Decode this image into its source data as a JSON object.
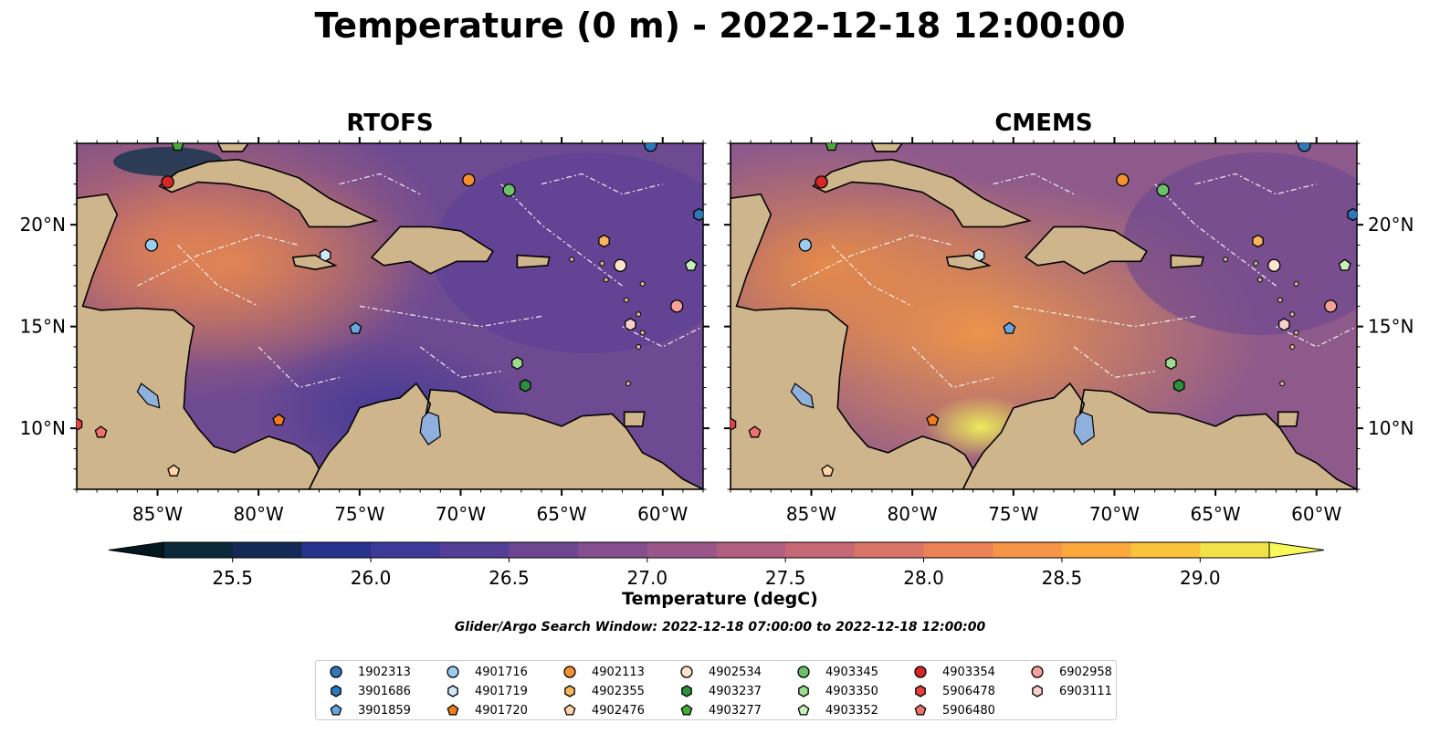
{
  "title": "Temperature (0 m) - 2022-12-18 12:00:00",
  "panels": [
    {
      "id": "rtofs",
      "title": "RTOFS"
    },
    {
      "id": "cmems",
      "title": "CMEMS"
    }
  ],
  "map_extent": {
    "lon_min": -89,
    "lon_max": -58,
    "lat_min": 7,
    "lat_max": 24
  },
  "lon_ticks": [
    {
      "lon": -85,
      "label": "85°W"
    },
    {
      "lon": -80,
      "label": "80°W"
    },
    {
      "lon": -75,
      "label": "75°W"
    },
    {
      "lon": -70,
      "label": "70°W"
    },
    {
      "lon": -65,
      "label": "65°W"
    },
    {
      "lon": -60,
      "label": "60°W"
    }
  ],
  "lat_ticks": [
    {
      "lat": 10,
      "label": "10°N"
    },
    {
      "lat": 15,
      "label": "15°N"
    },
    {
      "lat": 20,
      "label": "20°N"
    }
  ],
  "colorbar": {
    "label": "Temperature (degC)",
    "min": 25.25,
    "max": 29.25,
    "extend": "both",
    "ticks": [
      "25.5",
      "26.0",
      "26.5",
      "27.0",
      "27.5",
      "28.0",
      "28.5",
      "29.0"
    ],
    "colors": [
      "#0a2a3a",
      "#142a56",
      "#27338c",
      "#3c3998",
      "#553e97",
      "#6d4691",
      "#834f8f",
      "#9a5689",
      "#b05f80",
      "#c66975",
      "#d97568",
      "#ea8255",
      "#f69448",
      "#fba93d",
      "#f9c43a",
      "#f2e24a"
    ],
    "under_color": "#04171f",
    "over_color": "#f7f95a"
  },
  "search_window": "Glider/Argo Search Window: 2022-12-18 07:00:00 to 2022-12-18 12:00:00",
  "land_color": "#cfb58c",
  "glider_points": [
    {
      "id": "1902313",
      "shape": "circle",
      "color": "#2e78b8",
      "lon": -60.6,
      "lat": 23.9
    },
    {
      "id": "3901686",
      "shape": "hexagon",
      "color": "#2e78b8",
      "lon": -58.2,
      "lat": 20.5
    },
    {
      "id": "3901859",
      "shape": "pentagon",
      "color": "#6aa6dc",
      "lon": -75.2,
      "lat": 14.9
    },
    {
      "id": "4901716",
      "shape": "circle",
      "color": "#9bcdf0",
      "lon": -85.3,
      "lat": 19.0
    },
    {
      "id": "4901719",
      "shape": "hexagon",
      "color": "#d0e7f8",
      "lon": -76.7,
      "lat": 18.5
    },
    {
      "id": "4901720",
      "shape": "pentagon",
      "color": "#f07c1c",
      "lon": -79.0,
      "lat": 10.4
    },
    {
      "id": "4902113",
      "shape": "circle",
      "color": "#f5922f",
      "lon": -69.6,
      "lat": 22.2
    },
    {
      "id": "4902355",
      "shape": "hexagon",
      "color": "#f9b45e",
      "lon": -62.9,
      "lat": 19.2
    },
    {
      "id": "4902476",
      "shape": "pentagon",
      "color": "#fdd5a6",
      "lon": -84.2,
      "lat": 7.9
    },
    {
      "id": "4902534",
      "shape": "circle",
      "color": "#fde3cc",
      "lon": -62.1,
      "lat": 18.0
    },
    {
      "id": "4903237",
      "shape": "hexagon",
      "color": "#2c8f3c",
      "lon": -66.8,
      "lat": 12.1
    },
    {
      "id": "4903277",
      "shape": "pentagon",
      "color": "#49a83a",
      "lon": -84.0,
      "lat": 23.9
    },
    {
      "id": "4903345",
      "shape": "circle",
      "color": "#6bc26a",
      "lon": -67.6,
      "lat": 21.7
    },
    {
      "id": "4903350",
      "shape": "hexagon",
      "color": "#9ddc8f",
      "lon": -67.2,
      "lat": 13.2
    },
    {
      "id": "4903352",
      "shape": "pentagon",
      "color": "#c7efbc",
      "lon": -58.6,
      "lat": 18.0
    },
    {
      "id": "4903354",
      "shape": "circle",
      "color": "#d62728",
      "lon": -84.5,
      "lat": 22.1
    },
    {
      "id": "5906478",
      "shape": "hexagon",
      "color": "#e8413f",
      "lon": -89.0,
      "lat": 10.2
    },
    {
      "id": "5906480",
      "shape": "pentagon",
      "color": "#f0706d",
      "lon": -87.8,
      "lat": 9.8
    },
    {
      "id": "6902958",
      "shape": "circle",
      "color": "#f6a09a",
      "lon": -59.3,
      "lat": 16.0
    },
    {
      "id": "6903111",
      "shape": "hexagon",
      "color": "#fbcfcb",
      "lon": -61.6,
      "lat": 15.1
    }
  ]
}
